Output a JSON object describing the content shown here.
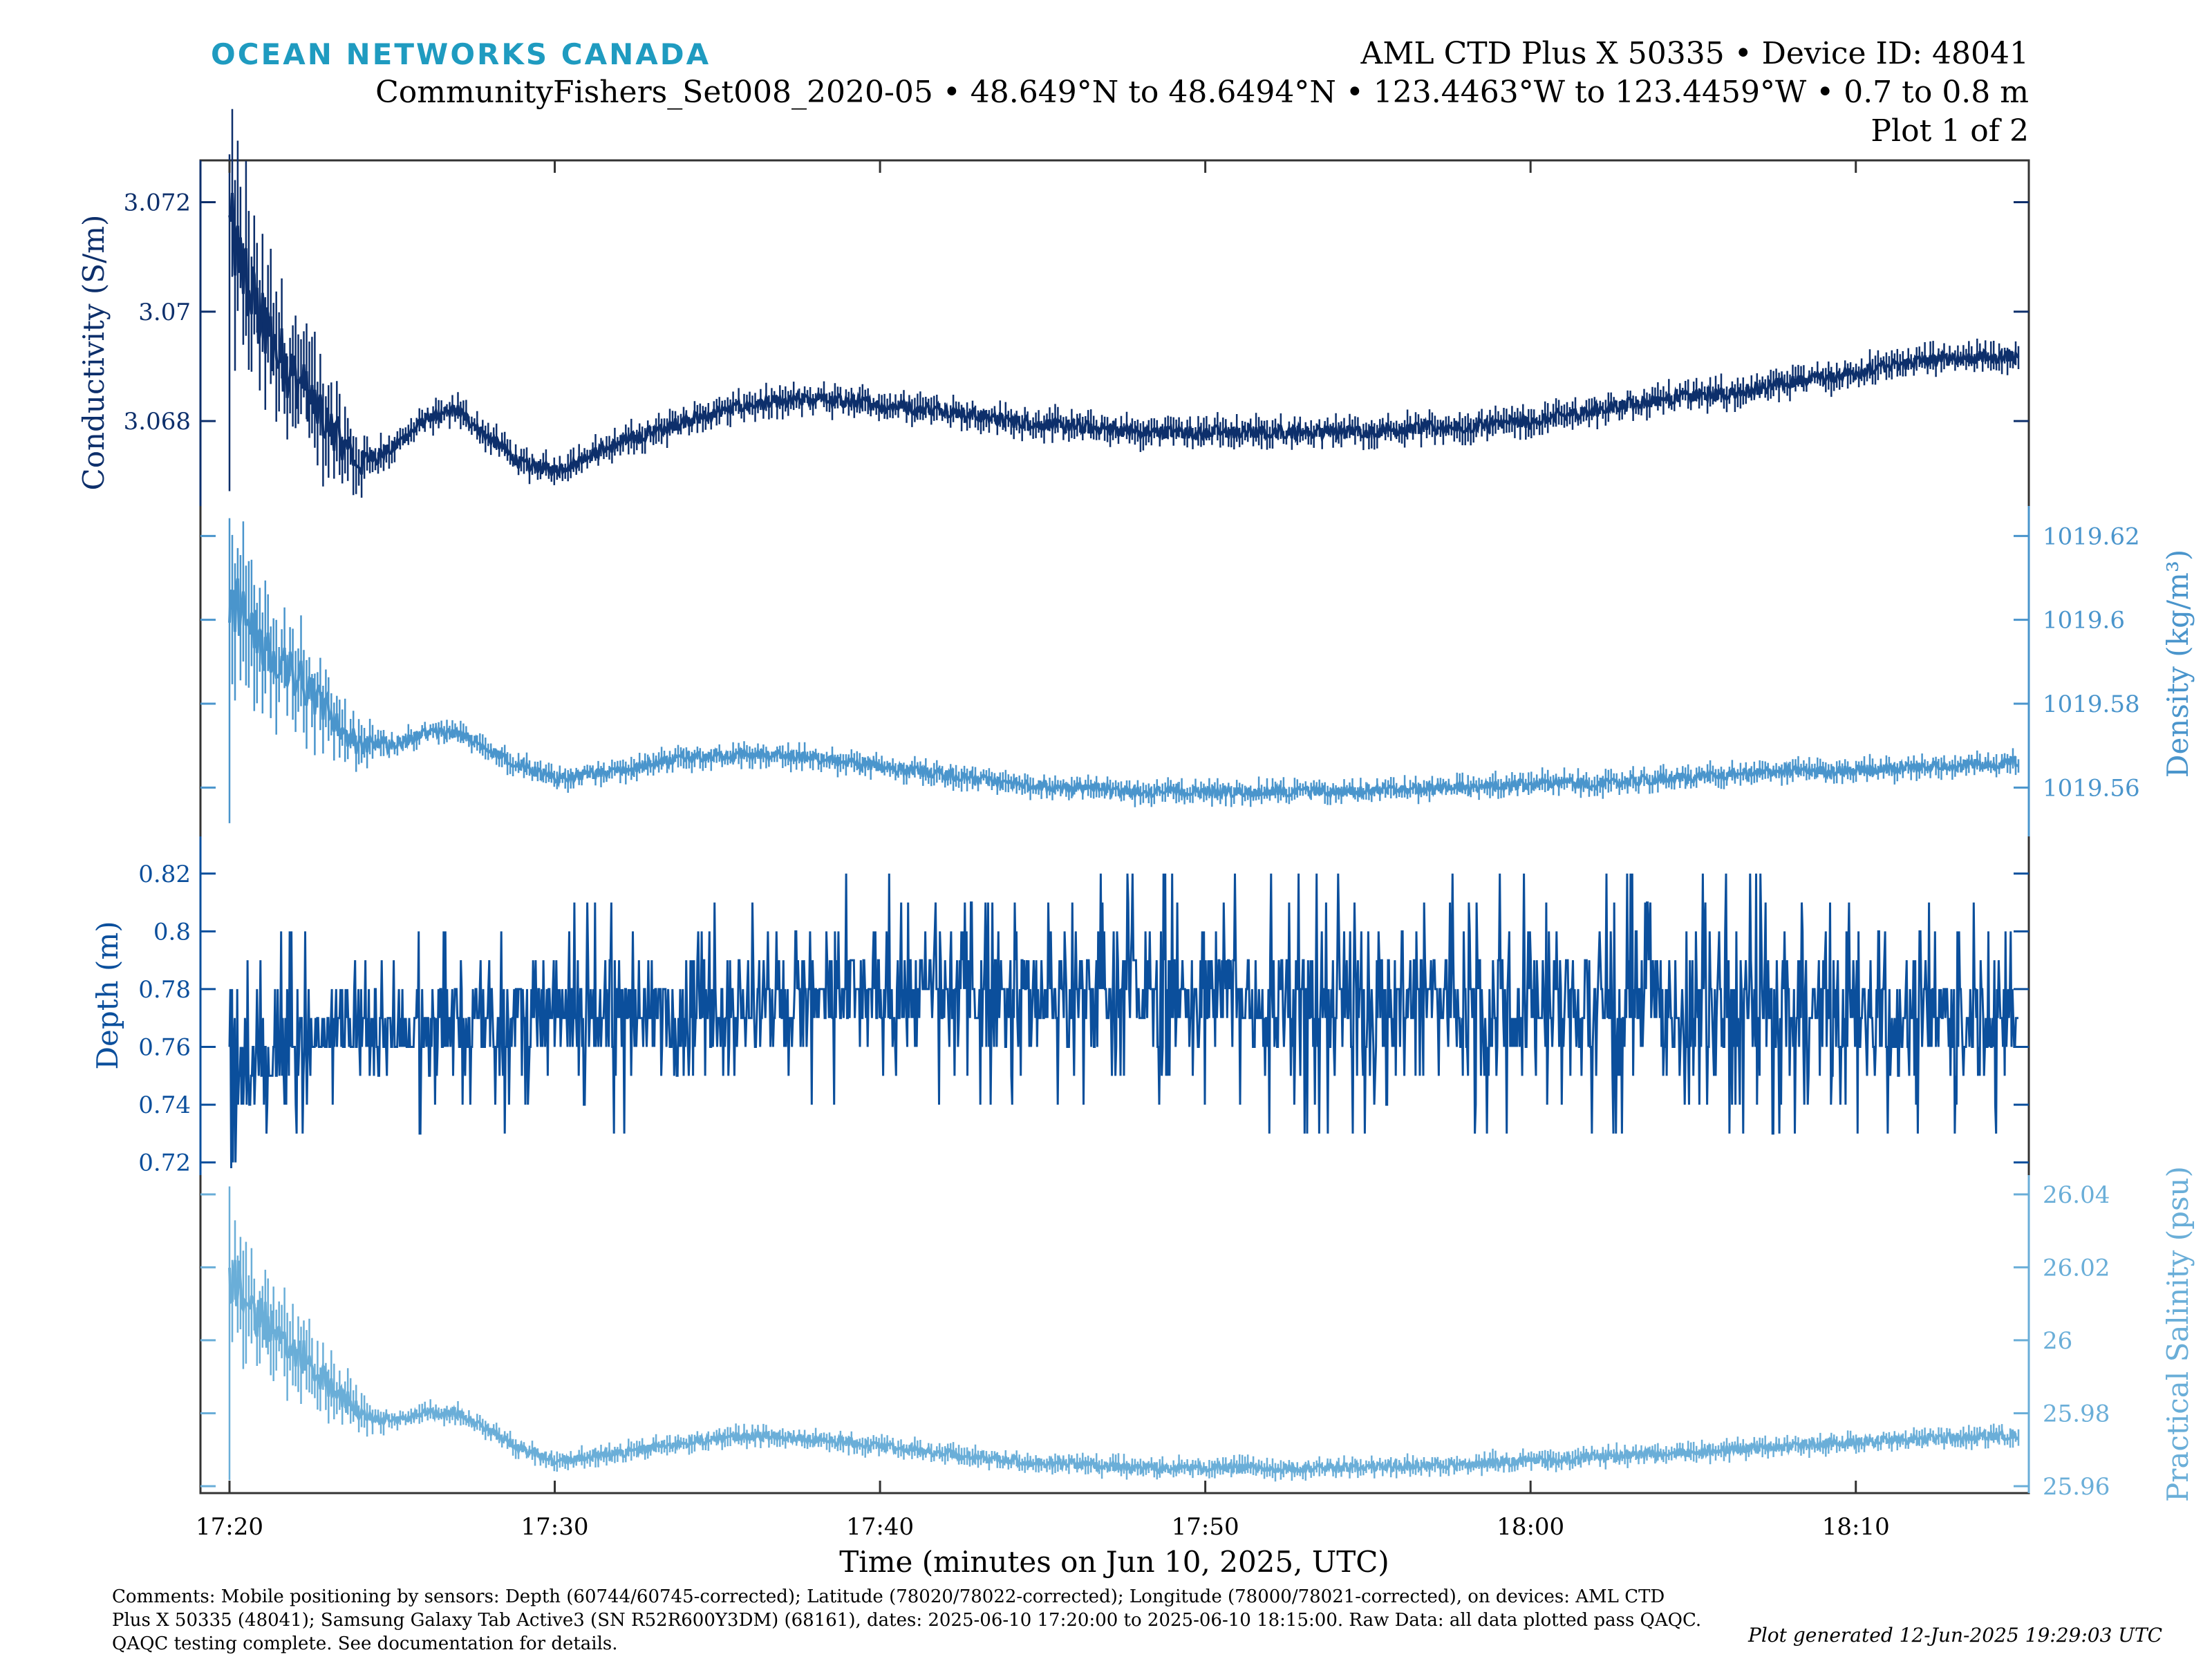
{
  "header": {
    "brand": "OCEAN NETWORKS CANADA",
    "device_line": "AML CTD Plus X 50335 • Device ID: 48041",
    "deployment_line": "CommunityFishers_Set008_2020-05 • 48.649°N to 48.6494°N • 123.4463°W to 123.4459°W • 0.7 to 0.8 m",
    "plot_index": "Plot 1 of 2"
  },
  "colors": {
    "conductivity": "#0d2f6b",
    "density": "#4a95cc",
    "depth": "#0b4f9c",
    "salinity": "#6aaed8"
  },
  "chart_data": {
    "type": "line",
    "xlabel": "Time (minutes on Jun 10, 2025, UTC)",
    "x_range": [
      "17:20",
      "18:15"
    ],
    "x_ticks": [
      "17:20",
      "17:30",
      "17:40",
      "17:50",
      "18:00",
      "18:10"
    ],
    "grid": false,
    "series": [
      {
        "name": "Conductivity",
        "ylabel": "Conductivity (S/m)",
        "y_side": "left",
        "ylim": [
          3.0666,
          3.0726
        ],
        "y_ticks": [
          3.068,
          3.07,
          3.072
        ],
        "y_tick_labels": [
          "3.068",
          "3.07",
          "3.072"
        ],
        "noise": 0.00012,
        "x": [
          "17:20",
          "17:21",
          "17:22",
          "17:23",
          "17:24",
          "17:25",
          "17:26",
          "17:27",
          "17:28",
          "17:29",
          "17:30",
          "17:32",
          "17:34",
          "17:36",
          "17:38",
          "17:40",
          "17:42",
          "17:44",
          "17:46",
          "17:48",
          "17:50",
          "17:54",
          "17:58",
          "18:00",
          "18:02",
          "18:04",
          "18:06",
          "18:08",
          "18:10",
          "18:12",
          "18:15"
        ],
        "values": [
          3.0715,
          3.0697,
          3.0688,
          3.068,
          3.0672,
          3.0675,
          3.068,
          3.0682,
          3.0677,
          3.0672,
          3.0671,
          3.0676,
          3.068,
          3.0683,
          3.0684,
          3.0683,
          3.0682,
          3.068,
          3.0679,
          3.0678,
          3.0678,
          3.0678,
          3.0679,
          3.068,
          3.0682,
          3.0684,
          3.0685,
          3.0687,
          3.0689,
          3.0691,
          3.0692
        ]
      },
      {
        "name": "Density",
        "ylabel": "Density (kg/m³)",
        "y_side": "right",
        "ylim": [
          1019.55,
          1019.625
        ],
        "y_ticks": [
          1019.56,
          1019.58,
          1019.6,
          1019.62
        ],
        "y_tick_labels": [
          "1019.56",
          "1019.58",
          "1019.6",
          "1019.62"
        ],
        "noise": 0.0012,
        "x": [
          "17:20",
          "17:21",
          "17:22",
          "17:23",
          "17:24",
          "17:25",
          "17:26",
          "17:27",
          "17:28",
          "17:29",
          "17:30",
          "17:32",
          "17:34",
          "17:36",
          "17:38",
          "17:40",
          "17:42",
          "17:44",
          "17:46",
          "17:48",
          "17:50",
          "17:54",
          "17:58",
          "18:00",
          "18:02",
          "18:04",
          "18:06",
          "18:08",
          "18:10",
          "18:12",
          "18:15"
        ],
        "values": [
          1019.605,
          1019.595,
          1019.587,
          1019.578,
          1019.57,
          1019.57,
          1019.573,
          1019.573,
          1019.569,
          1019.565,
          1019.562,
          1019.564,
          1019.567,
          1019.568,
          1019.567,
          1019.565,
          1019.563,
          1019.561,
          1019.56,
          1019.559,
          1019.559,
          1019.559,
          1019.56,
          1019.561,
          1019.561,
          1019.562,
          1019.563,
          1019.564,
          1019.564,
          1019.565,
          1019.566
        ]
      },
      {
        "name": "Depth",
        "ylabel": "Depth (m)",
        "y_side": "left",
        "ylim": [
          0.718,
          0.83
        ],
        "y_ticks": [
          0.72,
          0.74,
          0.76,
          0.78,
          0.8,
          0.82
        ],
        "y_tick_labels": [
          "0.72",
          "0.74",
          "0.76",
          "0.78",
          "0.8",
          "0.82"
        ],
        "quantized_step": 0.01,
        "x": [
          "17:20",
          "17:23",
          "17:43",
          "18:00",
          "18:15"
        ],
        "band_low": [
          0.73,
          0.75,
          0.76,
          0.75,
          0.75
        ],
        "band_high": [
          0.77,
          0.78,
          0.8,
          0.8,
          0.79
        ]
      },
      {
        "name": "Practical Salinity",
        "ylabel": "Practical Salinity (psu)",
        "y_side": "right",
        "ylim": [
          25.96,
          26.043
        ],
        "y_ticks": [
          25.96,
          25.98,
          26,
          26.02,
          26.04
        ],
        "y_tick_labels": [
          "25.96",
          "25.98",
          "26",
          "26.02",
          "26.04"
        ],
        "noise": 0.0012,
        "x": [
          "17:20",
          "17:21",
          "17:22",
          "17:23",
          "17:24",
          "17:25",
          "17:26",
          "17:27",
          "17:28",
          "17:29",
          "17:30",
          "17:32",
          "17:34",
          "17:36",
          "17:38",
          "17:40",
          "17:42",
          "17:44",
          "17:46",
          "17:48",
          "17:50",
          "17:54",
          "17:58",
          "18:00",
          "18:02",
          "18:04",
          "18:06",
          "18:08",
          "18:10",
          "18:12",
          "18:15"
        ],
        "values": [
          26.018,
          26.005,
          25.998,
          25.988,
          25.98,
          25.978,
          25.98,
          25.98,
          25.975,
          25.97,
          25.967,
          25.969,
          25.972,
          25.974,
          25.973,
          25.971,
          25.969,
          25.967,
          25.966,
          25.965,
          25.965,
          25.965,
          25.966,
          25.967,
          25.968,
          25.969,
          25.97,
          25.971,
          25.972,
          25.973,
          25.974
        ]
      }
    ]
  },
  "footer": {
    "comments_1": "Comments: Mobile positioning by sensors: Depth (60744/60745-corrected); Latitude (78020/78022-corrected); Longitude (78000/78021-corrected), on devices: AML CTD",
    "comments_2": "Plus X 50335 (48041); Samsung Galaxy Tab Active3 (SN R52R600Y3DM) (68161), dates: 2025-06-10 17:20:00 to 2025-06-10 18:15:00. Raw Data: all data plotted pass QAQC.",
    "comments_3": "QAQC testing complete. See documentation for details.",
    "generated": "Plot generated 12-Jun-2025 19:29:03 UTC"
  }
}
